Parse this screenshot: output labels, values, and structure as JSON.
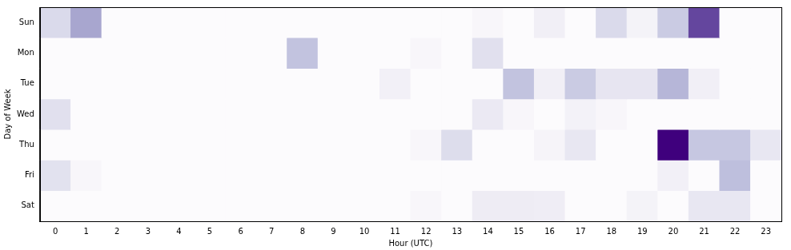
{
  "chart_data": {
    "type": "heatmap",
    "x_label": "Hour (UTC)",
    "y_label": "Day of Week",
    "x_categories": [
      0,
      1,
      2,
      3,
      4,
      5,
      6,
      7,
      8,
      9,
      10,
      11,
      12,
      13,
      14,
      15,
      16,
      17,
      18,
      19,
      20,
      21,
      22,
      23
    ],
    "y_categories": [
      "Sun",
      "Mon",
      "Tue",
      "Wed",
      "Thu",
      "Fri",
      "Sat"
    ],
    "cells": [
      [
        3,
        5.5,
        0,
        0,
        0,
        0,
        0,
        0,
        0,
        0,
        0,
        0,
        0,
        0,
        0.5,
        0,
        1.3,
        0,
        3,
        0.9,
        3.8,
        9.4,
        0,
        0
      ],
      [
        0,
        0,
        0,
        0,
        0,
        0,
        0,
        0,
        4.2,
        0,
        0,
        0,
        0.5,
        0,
        2.5,
        0,
        0,
        0,
        0,
        0,
        0,
        0,
        0,
        0
      ],
      [
        0,
        0,
        0,
        0,
        0,
        0,
        0,
        0,
        0,
        0,
        0,
        1.2,
        0,
        0,
        0,
        4.2,
        1.3,
        3.8,
        2.1,
        2.1,
        4.8,
        1.3,
        0,
        0
      ],
      [
        2.5,
        0,
        0,
        0,
        0,
        0,
        0,
        0,
        0,
        0,
        0,
        0,
        0,
        0,
        1.8,
        0.5,
        0,
        1,
        0.5,
        0,
        0,
        0,
        0,
        0
      ],
      [
        0,
        0,
        0,
        0,
        0,
        0,
        0,
        0,
        0,
        0,
        0,
        0,
        0.5,
        2.8,
        0,
        0,
        0.7,
        2,
        0,
        0,
        12,
        4,
        4,
        2
      ],
      [
        2.4,
        0.5,
        0,
        0,
        0,
        0,
        0,
        0,
        0,
        0,
        0,
        0,
        0,
        0,
        0,
        0,
        0,
        0,
        0,
        0,
        1.2,
        0,
        4.4,
        0
      ],
      [
        0,
        0,
        0,
        0,
        0,
        0,
        0,
        0,
        0,
        0,
        0,
        0,
        0.5,
        0,
        1.6,
        1.6,
        1.5,
        0,
        0,
        0.9,
        0,
        2,
        2,
        0
      ]
    ],
    "color": "Purples",
    "grid": false
  }
}
